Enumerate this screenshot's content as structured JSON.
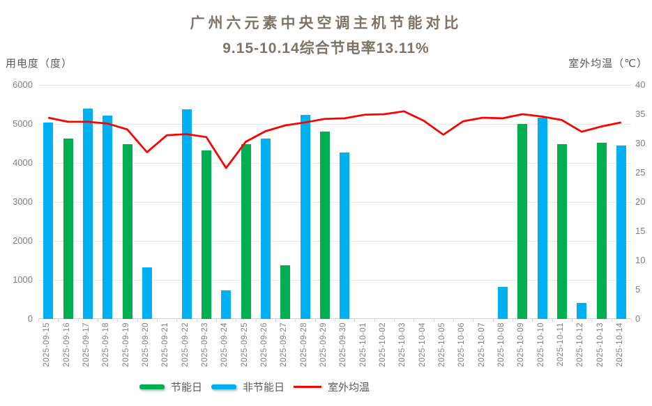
{
  "title": {
    "line1": "广州六元素中央空调主机节能对比",
    "line2": "9.15-10.14综合节电率13.11%"
  },
  "left_axis": {
    "title": "用电度（度）",
    "ticks": [
      6000,
      5000,
      4000,
      3000,
      2000,
      1000,
      0
    ]
  },
  "right_axis": {
    "title": "室外均温（℃）",
    "ticks": [
      40,
      35,
      30,
      25,
      20,
      15,
      10,
      5,
      0
    ]
  },
  "legend": {
    "items": [
      {
        "label": "节能日",
        "color": "#00B050",
        "swatch": "bar"
      },
      {
        "label": "非节能日",
        "color": "#00B0F0",
        "swatch": "bar"
      },
      {
        "label": "室外均温",
        "color": "#FF0000",
        "swatch": "line"
      }
    ]
  },
  "colors": {
    "saving_bar": "#00B050",
    "nonsaving_bar": "#00B0F0",
    "temperature_line": "#FF0000",
    "gridline": "#E6E6E6",
    "axis_text": "#7F7F7F",
    "title_text": "#7E7366"
  },
  "chart_data": {
    "type": "bar+line",
    "title": "广州六元素中央空调主机节能对比",
    "subtitle": "9.15-10.14综合节电率13.11%",
    "ylabel_left": "用电度（度）",
    "ylabel_right": "室外均温（℃）",
    "ylim_left": [
      0,
      6000
    ],
    "ylim_right": [
      0,
      40
    ],
    "grid": "horizontal",
    "legend_position": "bottom",
    "categories": [
      "2025-09-15",
      "2025-09-16",
      "2025-09-17",
      "2025-09-18",
      "2025-09-19",
      "2025-09-20",
      "2025-09-21",
      "2025-09-22",
      "2025-09-23",
      "2025-09-24",
      "2025-09-25",
      "2025-09-26",
      "2025-09-27",
      "2025-09-28",
      "2025-09-29",
      "2025-09-30",
      "2025-10-01",
      "2025-10-02",
      "2025-10-03",
      "2025-10-04",
      "2025-10-05",
      "2025-10-06",
      "2025-10-07",
      "2025-10-08",
      "2025-10-09",
      "2025-10-10",
      "2025-10-11",
      "2025-10-12",
      "2025-10-13",
      "2025-10-14"
    ],
    "series": [
      {
        "name": "节能日",
        "type": "bar",
        "axis": "left",
        "color": "#00B050",
        "values": [
          null,
          4630,
          null,
          null,
          4480,
          null,
          null,
          null,
          4330,
          null,
          4480,
          null,
          1370,
          null,
          4800,
          null,
          null,
          null,
          null,
          null,
          null,
          null,
          null,
          null,
          5000,
          null,
          4480,
          null,
          4510,
          null
        ]
      },
      {
        "name": "非节能日",
        "type": "bar",
        "axis": "left",
        "color": "#00B0F0",
        "values": [
          5030,
          null,
          5390,
          5210,
          null,
          1330,
          null,
          5380,
          null,
          730,
          null,
          4630,
          null,
          5230,
          null,
          4270,
          null,
          null,
          null,
          null,
          null,
          null,
          null,
          830,
          null,
          5170,
          null,
          420,
          null,
          4450
        ]
      },
      {
        "name": "室外均温",
        "type": "line",
        "axis": "right",
        "color": "#FF0000",
        "values": [
          34.4,
          33.7,
          33.7,
          33.4,
          32.4,
          28.5,
          31.4,
          31.6,
          31.1,
          25.8,
          30.3,
          32.1,
          33.1,
          33.6,
          34.2,
          34.3,
          34.9,
          35.0,
          35.5,
          33.9,
          31.5,
          33.8,
          34.4,
          34.3,
          35.0,
          34.6,
          34.0,
          32.0,
          32.9,
          33.6
        ]
      }
    ]
  }
}
